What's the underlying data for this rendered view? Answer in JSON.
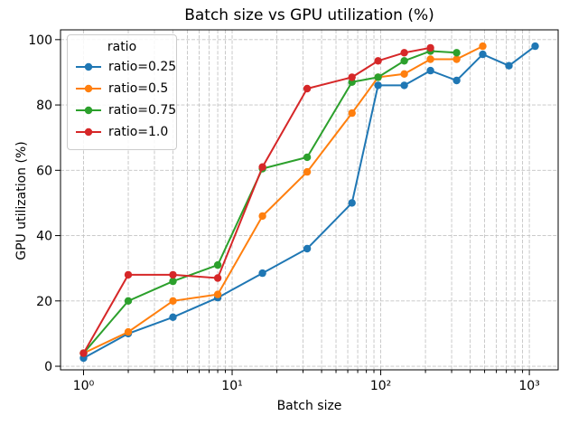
{
  "chart_data": {
    "type": "line",
    "title": "Batch size vs GPU utilization (%)",
    "xlabel": "Batch size",
    "ylabel": "GPU utilization (%)",
    "xscale": "log",
    "yscale": "linear",
    "xlim": [
      0.7,
      1563
    ],
    "ylim": [
      -1.1,
      103
    ],
    "grid": "dashed, major y, major+minor x",
    "legend": {
      "title": "ratio",
      "position": "upper-left"
    },
    "x_ticks": {
      "values": [
        1,
        10,
        100,
        1000
      ],
      "labels": [
        "10⁰",
        "10¹",
        "10²",
        "10³"
      ]
    },
    "y_ticks": {
      "values": [
        0,
        20,
        40,
        60,
        80,
        100
      ],
      "labels": [
        "0",
        "20",
        "40",
        "60",
        "80",
        "100"
      ]
    },
    "x": [
      1,
      2,
      4,
      8,
      16,
      32,
      64,
      96,
      144,
      216,
      324,
      486,
      729,
      1094
    ],
    "series": [
      {
        "name": "ratio=0.25",
        "color": "#1f77b4",
        "values": [
          2.5,
          10,
          15,
          21,
          28.5,
          36,
          50,
          86,
          86,
          90.5,
          87.5,
          95.5,
          92,
          98
        ]
      },
      {
        "name": "ratio=0.5",
        "color": "#ff7f0e",
        "values": [
          4,
          10.5,
          20,
          22,
          46,
          59.5,
          77.5,
          88.5,
          89.5,
          94,
          94,
          98
        ]
      },
      {
        "name": "ratio=0.75",
        "color": "#2ca02c",
        "values": [
          4,
          20,
          26,
          31,
          60.5,
          64,
          87,
          88.5,
          93.5,
          96.5,
          96
        ]
      },
      {
        "name": "ratio=1.0",
        "color": "#d62728",
        "values": [
          4,
          28,
          28,
          27,
          61,
          85,
          88.5,
          93.5,
          96,
          97.5
        ]
      }
    ]
  },
  "colors": {
    "background": "#ffffff",
    "grid": "#c4c4c4",
    "spine": "#000000",
    "tick_text": "#000000",
    "legend_border": "#cccccc"
  }
}
